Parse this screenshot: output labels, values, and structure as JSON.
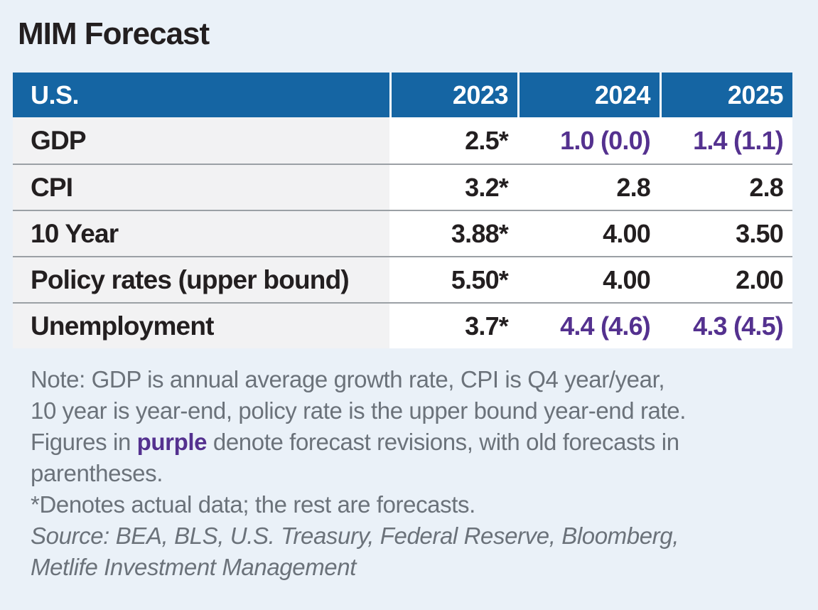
{
  "page": {
    "title": "MIM Forecast"
  },
  "colors": {
    "background": "#eaf1f8",
    "header_blue": "#1565a3",
    "revision_purple": "#54318f",
    "label_cell_gray": "#f2f2f3",
    "separator_gray": "#9ba0a5",
    "note_gray": "#6b727a",
    "text_black": "#231f20"
  },
  "table": {
    "header": {
      "label": "U.S.",
      "years": [
        "2023",
        "2024",
        "2025"
      ]
    },
    "rows": [
      {
        "label": "GDP",
        "values": [
          {
            "text": "2.5*",
            "revised": false
          },
          {
            "text": "1.0 (0.0)",
            "revised": true
          },
          {
            "text": "1.4 (1.1)",
            "revised": true
          }
        ]
      },
      {
        "label": "CPI",
        "values": [
          {
            "text": "3.2*",
            "revised": false
          },
          {
            "text": "2.8",
            "revised": false
          },
          {
            "text": "2.8",
            "revised": false
          }
        ]
      },
      {
        "label": "10 Year",
        "values": [
          {
            "text": "3.88*",
            "revised": false
          },
          {
            "text": "4.00",
            "revised": false
          },
          {
            "text": "3.50",
            "revised": false
          }
        ]
      },
      {
        "label": "Policy rates (upper bound)",
        "values": [
          {
            "text": "5.50*",
            "revised": false
          },
          {
            "text": "4.00",
            "revised": false
          },
          {
            "text": "2.00",
            "revised": false
          }
        ]
      },
      {
        "label": "Unemployment",
        "values": [
          {
            "text": "3.7*",
            "revised": false
          },
          {
            "text": "4.4 (4.6)",
            "revised": true
          },
          {
            "text": "4.3 (4.5)",
            "revised": true
          }
        ]
      }
    ]
  },
  "notes": {
    "line1": "Note: GDP is annual average growth rate, CPI is Q4 year/year,",
    "line2": "10 year is year-end, policy rate is the upper bound year-end rate.",
    "line3_prefix": "Figures in ",
    "line3_highlight": "purple",
    "line3_suffix": " denote forecast revisions, with old forecasts in",
    "line4": "parentheses.",
    "line5": "*Denotes actual data; the rest are forecasts.",
    "source_line1": "Source: BEA, BLS, U.S. Treasury, Federal Reserve, Bloomberg,",
    "source_line2": "Metlife Investment Management"
  },
  "chart_data": {
    "type": "table",
    "title": "MIM Forecast",
    "columns": [
      "U.S.",
      "2023",
      "2024",
      "2025"
    ],
    "rows": [
      [
        "GDP",
        "2.5*",
        "1.0 (0.0)",
        "1.4 (1.1)"
      ],
      [
        "CPI",
        "3.2*",
        "2.8",
        "2.8"
      ],
      [
        "10 Year",
        "3.88*",
        "4.00",
        "3.50"
      ],
      [
        "Policy rates (upper bound)",
        "5.50*",
        "4.00",
        "2.00"
      ],
      [
        "Unemployment",
        "3.7*",
        "4.4 (4.6)",
        "4.3 (4.5)"
      ]
    ],
    "revised_cells_purple": [
      [
        0,
        2
      ],
      [
        0,
        3
      ],
      [
        4,
        2
      ],
      [
        4,
        3
      ]
    ],
    "footnote": "Note: GDP is annual average growth rate, CPI is Q4 year/year, 10 year is year-end, policy rate is the upper bound year-end rate. Figures in purple denote forecast revisions, with old forecasts in parentheses. *Denotes actual data; the rest are forecasts. Source: BEA, BLS, U.S. Treasury, Federal Reserve, Bloomberg, Metlife Investment Management"
  }
}
